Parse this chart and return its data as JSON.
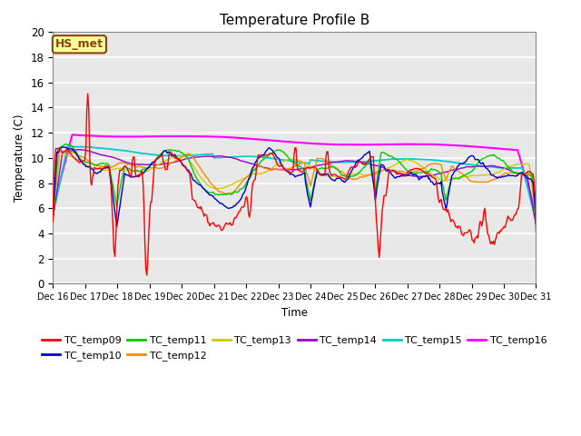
{
  "title": "Temperature Profile B",
  "xlabel": "Time",
  "ylabel": "Temperature (C)",
  "ylim": [
    0,
    20
  ],
  "fig_bg_color": "#ffffff",
  "plot_bg_color": "#e8e8e8",
  "annotation_text": "HS_met",
  "annotation_bg": "#ffff99",
  "annotation_border": "#8B4513",
  "series_colors": {
    "TC_temp09": "#ff0000",
    "TC_temp10": "#0000cc",
    "TC_temp11": "#00cc00",
    "TC_temp12": "#ff8800",
    "TC_temp13": "#cccc00",
    "TC_temp14": "#9900cc",
    "TC_temp15": "#00cccc",
    "TC_temp16": "#ff00ff"
  },
  "legend_order": [
    "TC_temp09",
    "TC_temp10",
    "TC_temp11",
    "TC_temp12",
    "TC_temp13",
    "TC_temp14",
    "TC_temp15",
    "TC_temp16"
  ],
  "n_points": 500
}
